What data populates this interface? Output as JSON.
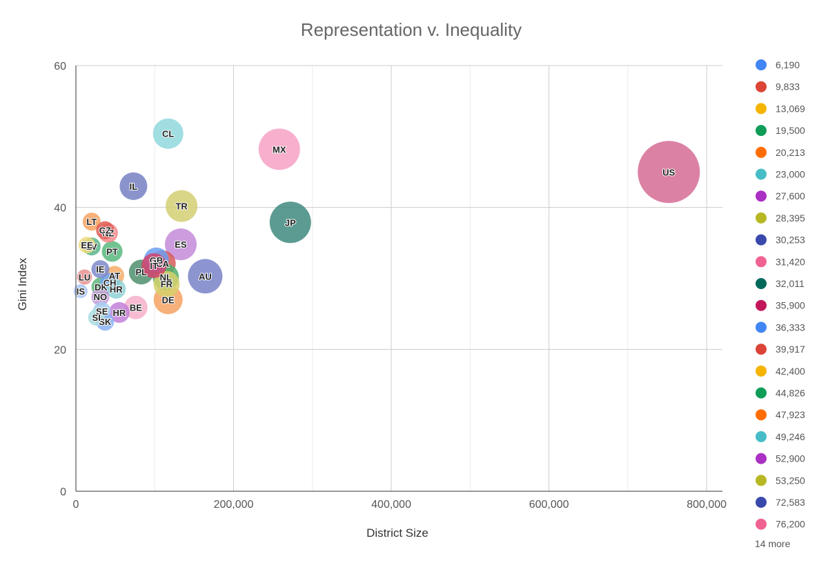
{
  "chart_data": {
    "type": "scatter",
    "subtype": "bubble",
    "title": "Representation v. Inequality",
    "xlabel": "District Size",
    "ylabel": "Gini Index",
    "xlim": [
      0,
      820000
    ],
    "ylim": [
      0,
      60
    ],
    "x_ticks": [
      0,
      200000,
      400000,
      600000,
      800000
    ],
    "x_tick_labels": [
      "0",
      "200,000",
      "400,000",
      "600,000",
      "800,000"
    ],
    "y_ticks": [
      0,
      20,
      40,
      60
    ],
    "y_tick_labels": [
      "0",
      "20",
      "40",
      "60"
    ],
    "grid": true,
    "legend_position": "right",
    "legend": [
      {
        "label": "6,190",
        "color": "#4285f4"
      },
      {
        "label": "9,833",
        "color": "#db4437"
      },
      {
        "label": "13,069",
        "color": "#f4b400"
      },
      {
        "label": "19,500",
        "color": "#0f9d58"
      },
      {
        "label": "20,213",
        "color": "#ff6d00"
      },
      {
        "label": "23,000",
        "color": "#46bdc6"
      },
      {
        "label": "27,600",
        "color": "#ab30c4"
      },
      {
        "label": "28,395",
        "color": "#b8b824"
      },
      {
        "label": "30,253",
        "color": "#3949ab"
      },
      {
        "label": "31,420",
        "color": "#f06292"
      },
      {
        "label": "32,011",
        "color": "#00695c"
      },
      {
        "label": "35,900",
        "color": "#c2185b"
      },
      {
        "label": "36,333",
        "color": "#4285f4"
      },
      {
        "label": "39,917",
        "color": "#db4437"
      },
      {
        "label": "42,400",
        "color": "#f4b400"
      },
      {
        "label": "44,826",
        "color": "#0f9d58"
      },
      {
        "label": "47,923",
        "color": "#ff6d00"
      },
      {
        "label": "49,246",
        "color": "#46bdc6"
      },
      {
        "label": "52,900",
        "color": "#ab30c4"
      },
      {
        "label": "53,250",
        "color": "#b8b824"
      },
      {
        "label": "72,583",
        "color": "#3949ab"
      },
      {
        "label": "76,200",
        "color": "#f06292"
      }
    ],
    "legend_more": "14 more",
    "points": [
      {
        "label": "US",
        "x": 752000,
        "y": 45.0,
        "color": "#d56b94",
        "size": 45
      },
      {
        "label": "MX",
        "x": 258000,
        "y": 48.2,
        "color": "#f7a1c6",
        "size": 30
      },
      {
        "label": "JP",
        "x": 272000,
        "y": 37.9,
        "color": "#3f8a7e",
        "size": 30
      },
      {
        "label": "CL",
        "x": 117000,
        "y": 50.4,
        "color": "#8fd8dd",
        "size": 22
      },
      {
        "label": "IL",
        "x": 73000,
        "y": 43.0,
        "color": "#7580c3",
        "size": 20
      },
      {
        "label": "TR",
        "x": 134000,
        "y": 40.2,
        "color": "#d3cf72",
        "size": 23
      },
      {
        "label": "ES",
        "x": 133000,
        "y": 34.8,
        "color": "#c48bd9",
        "size": 23
      },
      {
        "label": "AU",
        "x": 164000,
        "y": 30.3,
        "color": "#7883c8",
        "size": 25
      },
      {
        "label": "LT",
        "x": 20000,
        "y": 38.0,
        "color": "#f5a260",
        "size": 13
      },
      {
        "label": "CZ",
        "x": 37000,
        "y": 36.8,
        "color": "#e15b54",
        "size": 13
      },
      {
        "label": "NZ",
        "x": 41000,
        "y": 36.4,
        "color": "#f28a8a",
        "size": 14
      },
      {
        "label": "EE",
        "x": 14000,
        "y": 34.7,
        "color": "#eedb7f",
        "size": 12
      },
      {
        "label": "LV",
        "x": 20000,
        "y": 34.5,
        "color": "#5ab58a",
        "size": 13
      },
      {
        "label": "PT",
        "x": 46000,
        "y": 33.8,
        "color": "#58b97e",
        "size": 15
      },
      {
        "label": "IE",
        "x": 31000,
        "y": 31.3,
        "color": "#7d89cb",
        "size": 13
      },
      {
        "label": "LU",
        "x": 11000,
        "y": 30.2,
        "color": "#ea8f8f",
        "size": 11
      },
      {
        "label": "AT",
        "x": 49000,
        "y": 30.4,
        "color": "#f5ad68",
        "size": 14
      },
      {
        "label": "DK",
        "x": 32000,
        "y": 28.8,
        "color": "#62b57e",
        "size": 14
      },
      {
        "label": "CH",
        "x": 43000,
        "y": 29.4,
        "color": "#6fa3ef",
        "size": 14
      },
      {
        "label": "HR",
        "x": 51000,
        "y": 28.5,
        "color": "#8ed2d6",
        "size": 14
      },
      {
        "label": "IS",
        "x": 6000,
        "y": 28.2,
        "color": "#a7c6f5",
        "size": 10
      },
      {
        "label": "NO",
        "x": 31000,
        "y": 27.4,
        "color": "#c79bdc",
        "size": 13
      },
      {
        "label": "BE",
        "x": 76000,
        "y": 25.9,
        "color": "#f6b0c9",
        "size": 17
      },
      {
        "label": "HR",
        "x": 55000,
        "y": 25.2,
        "color": "#c27fd8",
        "size": 15
      },
      {
        "label": "SE",
        "x": 33000,
        "y": 25.4,
        "color": "#a7cfee",
        "size": 13
      },
      {
        "label": "SI",
        "x": 26000,
        "y": 24.5,
        "color": "#a9dde0",
        "size": 12
      },
      {
        "label": "SK",
        "x": 37000,
        "y": 23.9,
        "color": "#8bb3f2",
        "size": 13
      },
      {
        "label": "PL",
        "x": 83000,
        "y": 30.9,
        "color": "#4f8f6f",
        "size": 18
      },
      {
        "label": "GB",
        "x": 102000,
        "y": 32.6,
        "color": "#6c9ef0",
        "size": 18
      },
      {
        "label": "IT",
        "x": 99000,
        "y": 31.8,
        "color": "#d3436f",
        "size": 18
      },
      {
        "label": "CA",
        "x": 110000,
        "y": 32.1,
        "color": "#d65b5b",
        "size": 19
      },
      {
        "label": "NL",
        "x": 114000,
        "y": 30.2,
        "color": "#4fb06c",
        "size": 19
      },
      {
        "label": "FR",
        "x": 115000,
        "y": 29.2,
        "color": "#d6d06c",
        "size": 19
      },
      {
        "label": "DE",
        "x": 117000,
        "y": 27.0,
        "color": "#f6a262",
        "size": 21
      }
    ]
  }
}
